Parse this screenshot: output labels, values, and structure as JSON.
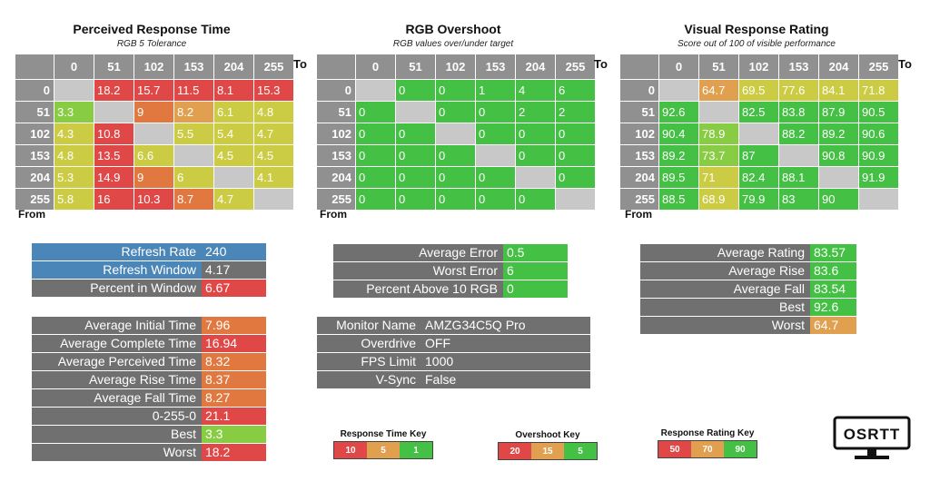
{
  "colors": {
    "red": "#e04848",
    "orange": "#e07840",
    "lightorange": "#e0a050",
    "yellow": "#cccc44",
    "lightgreen": "#88cc44",
    "green": "#44c044",
    "blue": "#4a86b8",
    "gray": "#707070",
    "diag": "#c8c8c8"
  },
  "panels": [
    {
      "title": "Perceived Response Time",
      "subtitle": "RGB 5 Tolerance",
      "to": "To",
      "from": "From",
      "headers": [
        "0",
        "51",
        "102",
        "153",
        "204",
        "255"
      ],
      "rows": [
        {
          "label": "0",
          "cells": [
            [
              "",
              "diag"
            ],
            [
              "18.2",
              "red"
            ],
            [
              "15.7",
              "red"
            ],
            [
              "11.5",
              "red"
            ],
            [
              "8.1",
              "red"
            ],
            [
              "15.3",
              "red"
            ]
          ]
        },
        {
          "label": "51",
          "cells": [
            [
              "3.3",
              "lightgreen"
            ],
            [
              "",
              "diag"
            ],
            [
              "9",
              "orange"
            ],
            [
              "8.2",
              "lightorange"
            ],
            [
              "6.1",
              "yellow"
            ],
            [
              "4.8",
              "yellow"
            ]
          ]
        },
        {
          "label": "102",
          "cells": [
            [
              "4.3",
              "yellow"
            ],
            [
              "10.8",
              "red"
            ],
            [
              "",
              "diag"
            ],
            [
              "5.5",
              "yellow"
            ],
            [
              "5.4",
              "yellow"
            ],
            [
              "4.7",
              "yellow"
            ]
          ]
        },
        {
          "label": "153",
          "cells": [
            [
              "4.8",
              "yellow"
            ],
            [
              "13.5",
              "red"
            ],
            [
              "6.6",
              "yellow"
            ],
            [
              "",
              "diag"
            ],
            [
              "4.5",
              "yellow"
            ],
            [
              "4.5",
              "yellow"
            ]
          ]
        },
        {
          "label": "204",
          "cells": [
            [
              "5.3",
              "yellow"
            ],
            [
              "14.9",
              "red"
            ],
            [
              "9",
              "orange"
            ],
            [
              "6",
              "yellow"
            ],
            [
              "",
              "diag"
            ],
            [
              "4.1",
              "yellow"
            ]
          ]
        },
        {
          "label": "255",
          "cells": [
            [
              "5.8",
              "yellow"
            ],
            [
              "16",
              "red"
            ],
            [
              "10.3",
              "red"
            ],
            [
              "8.7",
              "orange"
            ],
            [
              "4.7",
              "yellow"
            ],
            [
              "",
              "diag"
            ]
          ]
        }
      ]
    },
    {
      "title": "RGB Overshoot",
      "subtitle": "RGB values over/under target",
      "to": "To",
      "from": "From",
      "headers": [
        "0",
        "51",
        "102",
        "153",
        "204",
        "255"
      ],
      "rows": [
        {
          "label": "0",
          "cells": [
            [
              "",
              "diag"
            ],
            [
              "0",
              "green"
            ],
            [
              "0",
              "green"
            ],
            [
              "1",
              "green"
            ],
            [
              "4",
              "green"
            ],
            [
              "6",
              "green"
            ]
          ]
        },
        {
          "label": "51",
          "cells": [
            [
              "0",
              "green"
            ],
            [
              "",
              "diag"
            ],
            [
              "0",
              "green"
            ],
            [
              "0",
              "green"
            ],
            [
              "2",
              "green"
            ],
            [
              "2",
              "green"
            ]
          ]
        },
        {
          "label": "102",
          "cells": [
            [
              "0",
              "green"
            ],
            [
              "0",
              "green"
            ],
            [
              "",
              "diag"
            ],
            [
              "0",
              "green"
            ],
            [
              "0",
              "green"
            ],
            [
              "0",
              "green"
            ]
          ]
        },
        {
          "label": "153",
          "cells": [
            [
              "0",
              "green"
            ],
            [
              "0",
              "green"
            ],
            [
              "0",
              "green"
            ],
            [
              "",
              "diag"
            ],
            [
              "0",
              "green"
            ],
            [
              "0",
              "green"
            ]
          ]
        },
        {
          "label": "204",
          "cells": [
            [
              "0",
              "green"
            ],
            [
              "0",
              "green"
            ],
            [
              "0",
              "green"
            ],
            [
              "0",
              "green"
            ],
            [
              "",
              "diag"
            ],
            [
              "0",
              "green"
            ]
          ]
        },
        {
          "label": "255",
          "cells": [
            [
              "0",
              "green"
            ],
            [
              "0",
              "green"
            ],
            [
              "0",
              "green"
            ],
            [
              "0",
              "green"
            ],
            [
              "0",
              "green"
            ],
            [
              "",
              "diag"
            ]
          ]
        }
      ]
    },
    {
      "title": "Visual Response Rating",
      "subtitle": "Score out of 100 of visible performance",
      "to": "To",
      "from": "From",
      "headers": [
        "0",
        "51",
        "102",
        "153",
        "204",
        "255"
      ],
      "rows": [
        {
          "label": "0",
          "cells": [
            [
              "",
              "diag"
            ],
            [
              "64.7",
              "lightorange"
            ],
            [
              "69.5",
              "yellow"
            ],
            [
              "77.6",
              "yellow"
            ],
            [
              "84.1",
              "yellow"
            ],
            [
              "71.8",
              "yellow"
            ]
          ]
        },
        {
          "label": "51",
          "cells": [
            [
              "92.6",
              "green"
            ],
            [
              "",
              "diag"
            ],
            [
              "82.5",
              "green"
            ],
            [
              "83.8",
              "green"
            ],
            [
              "87.9",
              "green"
            ],
            [
              "90.5",
              "green"
            ]
          ]
        },
        {
          "label": "102",
          "cells": [
            [
              "90.4",
              "green"
            ],
            [
              "78.9",
              "lightgreen"
            ],
            [
              "",
              "diag"
            ],
            [
              "88.2",
              "green"
            ],
            [
              "89.2",
              "green"
            ],
            [
              "90.6",
              "green"
            ]
          ]
        },
        {
          "label": "153",
          "cells": [
            [
              "89.2",
              "green"
            ],
            [
              "73.7",
              "lightgreen"
            ],
            [
              "87",
              "green"
            ],
            [
              "",
              "diag"
            ],
            [
              "90.8",
              "green"
            ],
            [
              "90.9",
              "green"
            ]
          ]
        },
        {
          "label": "204",
          "cells": [
            [
              "89.5",
              "green"
            ],
            [
              "71",
              "yellow"
            ],
            [
              "82.4",
              "green"
            ],
            [
              "88.1",
              "green"
            ],
            [
              "",
              "diag"
            ],
            [
              "91.9",
              "green"
            ]
          ]
        },
        {
          "label": "255",
          "cells": [
            [
              "88.5",
              "green"
            ],
            [
              "68.9",
              "yellow"
            ],
            [
              "79.9",
              "green"
            ],
            [
              "83",
              "green"
            ],
            [
              "90",
              "green"
            ],
            [
              "",
              "diag"
            ]
          ]
        }
      ]
    }
  ],
  "refresh": [
    {
      "label": "Refresh Rate",
      "value": "240",
      "kc": "blue",
      "vc": "blue"
    },
    {
      "label": "Refresh Window",
      "value": "4.17",
      "kc": "blue",
      "vc": "gray"
    },
    {
      "label": "Percent in Window",
      "value": "6.67",
      "kc": "gray",
      "vc": "red"
    }
  ],
  "response_stats": [
    {
      "label": "Average Initial Time",
      "value": "7.96",
      "vc": "orange"
    },
    {
      "label": "Average Complete Time",
      "value": "16.94",
      "vc": "red"
    },
    {
      "label": "Average Perceived Time",
      "value": "8.32",
      "vc": "orange"
    },
    {
      "label": "Average Rise Time",
      "value": "8.37",
      "vc": "orange"
    },
    {
      "label": "Average Fall Time",
      "value": "8.27",
      "vc": "orange"
    },
    {
      "label": "0-255-0",
      "value": "21.1",
      "vc": "red"
    },
    {
      "label": "Best",
      "value": "3.3",
      "vc": "lightgreen"
    },
    {
      "label": "Worst",
      "value": "18.2",
      "vc": "red"
    }
  ],
  "overshoot_stats": [
    {
      "label": "Average Error",
      "value": "0.5",
      "vc": "green"
    },
    {
      "label": "Worst Error",
      "value": "6",
      "vc": "green"
    },
    {
      "label": "Percent Above 10 RGB",
      "value": "0",
      "vc": "green"
    }
  ],
  "monitor_info": [
    {
      "label": "Monitor Name",
      "value": "AMZG34C5Q Pro"
    },
    {
      "label": "Overdrive",
      "value": "OFF"
    },
    {
      "label": "FPS Limit",
      "value": "1000"
    },
    {
      "label": "V-Sync",
      "value": "False"
    }
  ],
  "rating_stats": [
    {
      "label": "Average Rating",
      "value": "83.57",
      "vc": "green"
    },
    {
      "label": "Average Rise",
      "value": "83.6",
      "vc": "green"
    },
    {
      "label": "Average Fall",
      "value": "83.54",
      "vc": "green"
    },
    {
      "label": "Best",
      "value": "92.6",
      "vc": "green"
    },
    {
      "label": "Worst",
      "value": "64.7",
      "vc": "lightorange"
    }
  ],
  "keys": [
    {
      "title": "Response Time Key",
      "items": [
        [
          "10",
          "red"
        ],
        [
          "5",
          "lightorange"
        ],
        [
          "1",
          "green"
        ]
      ]
    },
    {
      "title": "Overshoot Key",
      "items": [
        [
          "20",
          "red"
        ],
        [
          "15",
          "lightorange"
        ],
        [
          "5",
          "green"
        ]
      ]
    },
    {
      "title": "Response Rating Key",
      "items": [
        [
          "50",
          "red"
        ],
        [
          "70",
          "lightorange"
        ],
        [
          "90",
          "green"
        ]
      ]
    }
  ],
  "logo_text": "OSRTT"
}
